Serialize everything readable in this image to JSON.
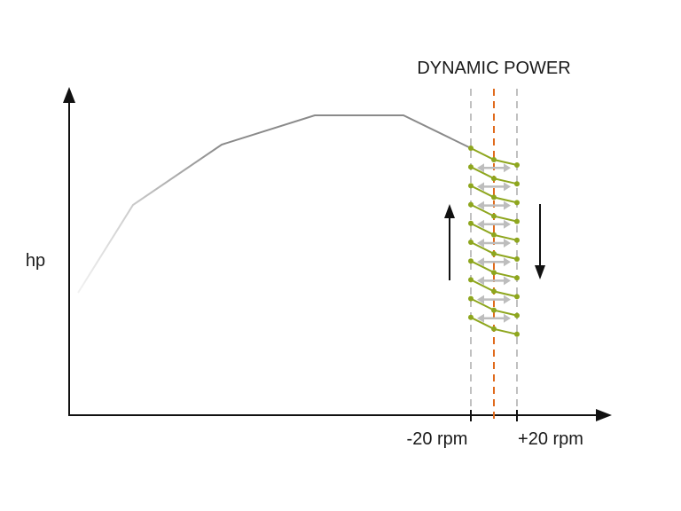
{
  "title": "DYNAMIC POWER",
  "y_axis_label": "hp",
  "x_labels": {
    "minus": "-20 rpm",
    "plus": "+20 rpm"
  },
  "colors": {
    "curve": "#8a8a8a",
    "band_lines": "#b0b0b0",
    "center_line": "#e06a1c",
    "oscillation": "#8ea61e",
    "h_arrows": "#bdbdbd",
    "axes": "#111111"
  },
  "oscillation_cycles": 10
}
